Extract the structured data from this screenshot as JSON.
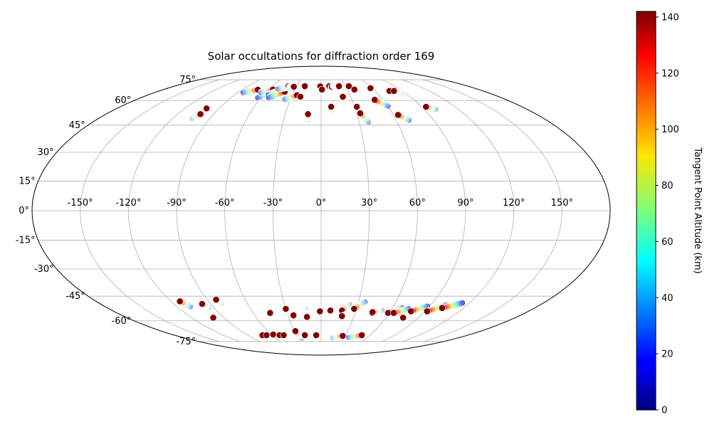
{
  "chart_data": {
    "type": "scatter",
    "projection": "mollweide",
    "title": "Solar occultations for diffraction order 169",
    "xlabel": "",
    "ylabel": "",
    "grid": true,
    "xlim": [
      -180,
      180
    ],
    "ylim": [
      -90,
      90
    ],
    "x_ticks": [
      -150,
      -120,
      -90,
      -60,
      -30,
      0,
      30,
      60,
      90,
      120,
      150
    ],
    "x_tick_labels": [
      "-150°",
      "-120°",
      "-90°",
      "-60°",
      "-30°",
      "0°",
      "30°",
      "60°",
      "90°",
      "120°",
      "150°"
    ],
    "y_ticks": [
      75,
      60,
      45,
      30,
      15,
      0,
      -15,
      -30,
      -45,
      -60,
      -75
    ],
    "y_tick_labels": [
      "75°",
      "60°",
      "45°",
      "30°",
      "15°",
      "0°",
      "-15°",
      "-30°",
      "-45°",
      "-60°",
      "-75°"
    ],
    "colorbar": {
      "label": "Tangent Point Altitude (km)",
      "colormap": "jet",
      "range": [
        0,
        142
      ],
      "ticks": [
        0,
        20,
        40,
        60,
        80,
        100,
        120,
        140
      ],
      "tick_labels": [
        "0",
        "20",
        "40",
        "60",
        "80",
        "100",
        "120",
        "140"
      ],
      "placement": "right"
    },
    "occultation_tracks": [
      {
        "lon_start": -84,
        "lat_start": 65.5,
        "lon_end": -72,
        "lat_end": 67.4
      },
      {
        "lon_start": -103,
        "lat_start": 53,
        "lon_end": -101,
        "lat_end": 55
      },
      {
        "lon_start": -104,
        "lat_start": 49,
        "lon_end": -101,
        "lat_end": 51.5
      },
      {
        "lon_start": -63,
        "lat_start": 62,
        "lon_end": -54,
        "lat_end": 67
      },
      {
        "lon_start": -65,
        "lat_start": 65.5,
        "lon_end": -55,
        "lat_end": 67.5
      },
      {
        "lon_start": -55,
        "lat_start": 64,
        "lon_end": -45,
        "lat_end": 67.5
      },
      {
        "lon_start": -52,
        "lat_start": 62,
        "lon_end": -40,
        "lat_end": 66
      },
      {
        "lon_start": -49,
        "lat_start": 68,
        "lon_end": -36,
        "lat_end": 69.5
      },
      {
        "lon_start": -45,
        "lat_start": 70,
        "lon_end": -40,
        "lat_end": 70
      },
      {
        "lon_start": -38,
        "lat_start": 69.5,
        "lon_end": -33,
        "lat_end": 69.5
      },
      {
        "lon_start": -35,
        "lat_start": 61,
        "lon_end": -25,
        "lat_end": 63.5
      },
      {
        "lon_start": -21,
        "lat_start": 62,
        "lon_end": -21,
        "lat_end": 62.5
      },
      {
        "lon_start": -23,
        "lat_start": 70,
        "lon_end": -20,
        "lat_end": 70
      },
      {
        "lon_start": -10,
        "lat_start": 48.5,
        "lon_end": -11,
        "lat_end": 51.5
      },
      {
        "lon_start": -3,
        "lat_start": 69.8,
        "lon_end": -1,
        "lat_end": 69.8
      },
      {
        "lon_start": -3,
        "lat_start": 65.5,
        "lon_end": 1,
        "lat_end": 67.5
      },
      {
        "lon_start": 8,
        "lat_start": 70,
        "lon_end": 10,
        "lat_end": 70
      },
      {
        "lon_start": 12,
        "lat_start": 69,
        "lon_end": 13,
        "lat_end": 69.5
      },
      {
        "lon_start": 15,
        "lat_start": 70,
        "lon_end": 21,
        "lat_end": 70
      },
      {
        "lon_start": 18,
        "lat_start": 70,
        "lon_end": 22,
        "lat_end": 70
      },
      {
        "lon_start": 10,
        "lat_start": 54,
        "lon_end": 9,
        "lat_end": 56
      },
      {
        "lon_start": 23,
        "lat_start": 61,
        "lon_end": 22,
        "lat_end": 62.5
      },
      {
        "lon_start": 31,
        "lat_start": 69.5,
        "lon_end": 34,
        "lat_end": 70
      },
      {
        "lon_start": 39,
        "lat_start": 67.5,
        "lon_end": 38,
        "lat_end": 67.5
      },
      {
        "lon_start": 34,
        "lat_start": 53,
        "lon_end": 32,
        "lat_end": 56
      },
      {
        "lon_start": 37,
        "lat_start": 47,
        "lon_end": 33,
        "lat_end": 52
      },
      {
        "lon_start": 60,
        "lat_start": 56.5,
        "lon_end": 52,
        "lat_end": 60.5
      },
      {
        "lon_start": 53,
        "lat_start": 68.5,
        "lon_end": 58,
        "lat_end": 68.5
      },
      {
        "lon_start": 70,
        "lat_start": 48,
        "lon_end": 64,
        "lat_end": 51
      },
      {
        "lon_start": 77,
        "lat_start": 66.5,
        "lon_end": 76,
        "lat_end": 66.5
      },
      {
        "lon_start": 85,
        "lat_start": 65,
        "lon_end": 81,
        "lat_end": 66.5
      },
      {
        "lon_start": 100,
        "lat_start": 54.5,
        "lon_end": 94,
        "lat_end": 56
      },
      {
        "lon_start": -109,
        "lat_start": -51,
        "lon_end": -113,
        "lat_end": -48
      },
      {
        "lon_start": -94,
        "lat_start": -51.5,
        "lon_end": -97,
        "lat_end": -49.5
      },
      {
        "lon_start": -100,
        "lat_start": -58,
        "lon_end": -100,
        "lat_end": -58
      },
      {
        "lon_start": -81,
        "lat_start": -49,
        "lon_end": -83,
        "lat_end": -47
      },
      {
        "lon_start": -72,
        "lat_start": -70,
        "lon_end": -72,
        "lat_end": -70
      },
      {
        "lon_start": -64,
        "lat_start": -70,
        "lon_end": -67,
        "lat_end": -70
      },
      {
        "lon_start": -58,
        "lat_start": -69.5,
        "lon_end": -58,
        "lat_end": -69.5
      },
      {
        "lon_start": -51,
        "lat_start": -70,
        "lon_end": -51,
        "lat_end": -70
      },
      {
        "lon_start": -46,
        "lat_start": -70.5,
        "lon_end": -46,
        "lat_end": -70
      },
      {
        "lon_start": -45,
        "lat_start": -55,
        "lon_end": -45,
        "lat_end": -55
      },
      {
        "lon_start": -30,
        "lat_start": -55,
        "lon_end": -30,
        "lat_end": -52.5
      },
      {
        "lon_start": -26,
        "lat_start": -72,
        "lon_end": -29,
        "lat_end": -67
      },
      {
        "lon_start": -22,
        "lat_start": -70,
        "lon_end": -20,
        "lat_end": -70
      },
      {
        "lon_start": -25,
        "lat_start": -56.5,
        "lon_end": -25,
        "lat_end": -56.5
      },
      {
        "lon_start": -12,
        "lat_start": -53.5,
        "lon_end": -13,
        "lat_end": -57.5
      },
      {
        "lon_start": -9,
        "lat_start": -70.8,
        "lon_end": -6,
        "lat_end": -70
      },
      {
        "lon_start": 1,
        "lat_start": -52,
        "lon_end": -1,
        "lat_end": -54
      },
      {
        "lon_start": 11,
        "lat_start": -51.5,
        "lon_end": 8,
        "lat_end": -53.5
      },
      {
        "lon_start": 23,
        "lat_start": -50,
        "lon_end": 18,
        "lat_end": -53.5
      },
      {
        "lon_start": 22,
        "lat_start": -56,
        "lon_end": 19,
        "lat_end": -57
      },
      {
        "lon_start": 35,
        "lat_start": -48.5,
        "lon_end": 28,
        "lat_end": -52.5
      },
      {
        "lon_start": 16,
        "lat_start": -72,
        "lon_end": 27,
        "lat_end": -70.5
      },
      {
        "lon_start": 36,
        "lat_start": -71.5,
        "lon_end": 50,
        "lat_end": -70
      },
      {
        "lon_start": 51,
        "lat_start": -55,
        "lon_end": 45,
        "lat_end": -55
      },
      {
        "lon_start": 52,
        "lat_start": -53.5,
        "lon_end": 45,
        "lat_end": -54.5
      },
      {
        "lon_start": 68,
        "lat_start": -52,
        "lon_end": 59,
        "lat_end": -55
      },
      {
        "lon_start": 74,
        "lat_start": -52.5,
        "lon_end": 64,
        "lat_end": -55
      },
      {
        "lon_start": 79,
        "lat_start": -58,
        "lon_end": 76,
        "lat_end": -58
      },
      {
        "lon_start": 88,
        "lat_start": -51,
        "lon_end": 78,
        "lat_end": -54
      },
      {
        "lon_start": 103,
        "lat_start": -50.5,
        "lon_end": 92,
        "lat_end": -54
      },
      {
        "lon_start": 114,
        "lat_start": -49,
        "lon_end": 102,
        "lat_end": -52
      }
    ]
  }
}
